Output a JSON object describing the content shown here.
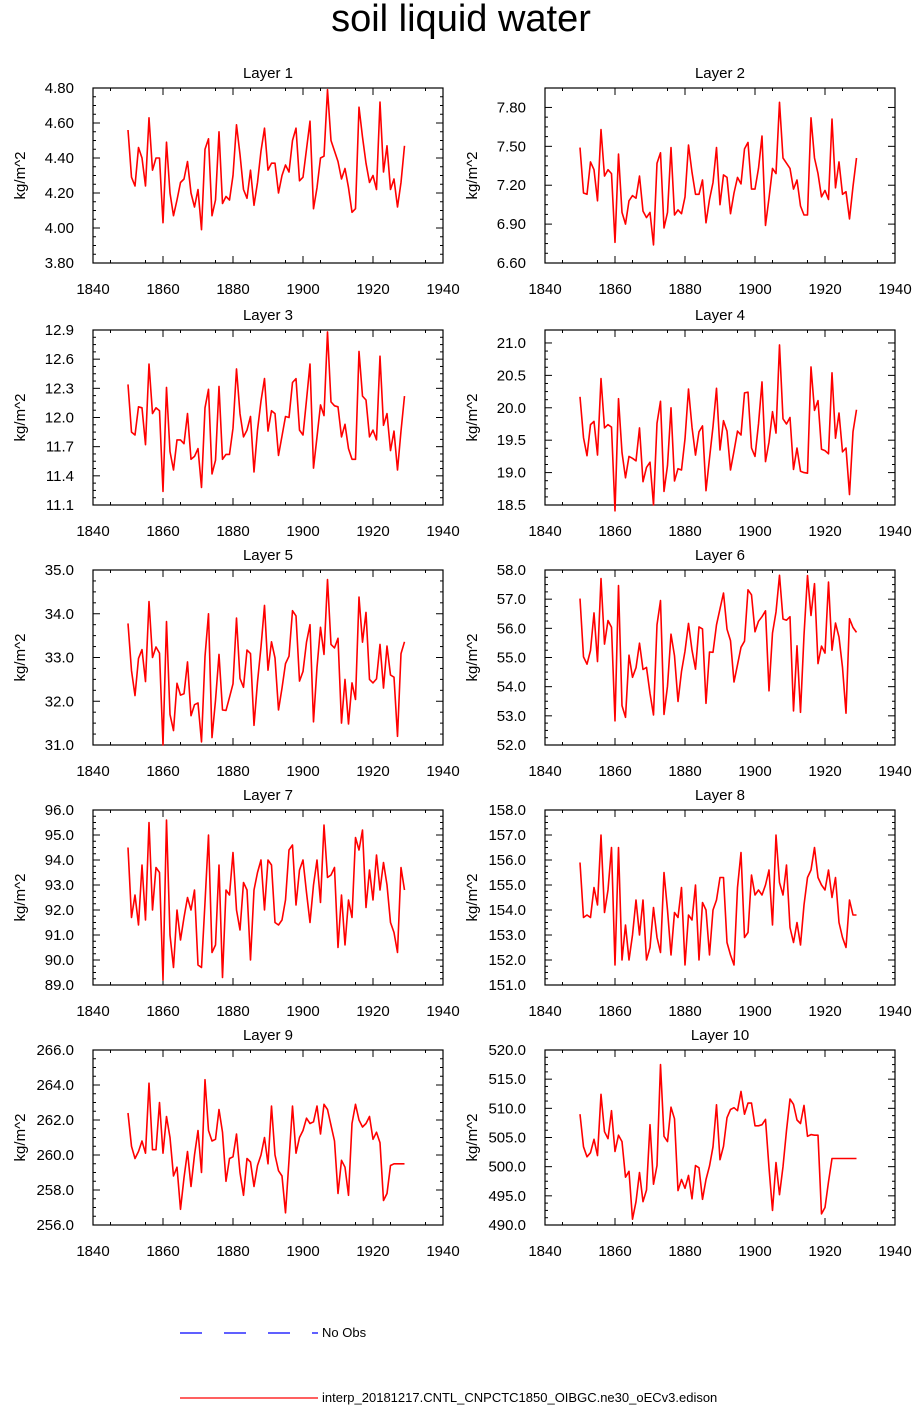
{
  "title": "soil liquid water",
  "colors": {
    "series": "#ff0000",
    "noobs": "#0000ff",
    "axis": "#000000"
  },
  "legend": {
    "noobs_label": "No Obs",
    "series_label": "interp_20181217.CNTL_CNPCTC1850_OIBGC.ne30_oECv3.edison"
  },
  "chart_data": [
    {
      "type": "line",
      "title": "Layer 1",
      "ylabel": "kg/m^2",
      "xlim": [
        1840,
        1940
      ],
      "xticks": [
        1840,
        1860,
        1880,
        1900,
        1920,
        1940
      ],
      "ylim": [
        3.8,
        4.8
      ],
      "yticks": [
        "3.80",
        "4.00",
        "4.20",
        "4.40",
        "4.60",
        "4.80"
      ],
      "x0": 1850,
      "values": [
        4.56,
        4.29,
        4.24,
        4.46,
        4.4,
        4.24,
        4.63,
        4.33,
        4.4,
        4.4,
        4.03,
        4.49,
        4.2,
        4.07,
        4.16,
        4.26,
        4.28,
        4.38,
        4.2,
        4.12,
        4.22,
        3.99,
        4.45,
        4.51,
        4.07,
        4.16,
        4.55,
        4.14,
        4.18,
        4.16,
        4.3,
        4.59,
        4.42,
        4.22,
        4.17,
        4.33,
        4.13,
        4.26,
        4.44,
        4.57,
        4.33,
        4.37,
        4.37,
        4.2,
        4.3,
        4.36,
        4.32,
        4.5,
        4.57,
        4.27,
        4.29,
        4.45,
        4.61,
        4.11,
        4.23,
        4.4,
        4.41,
        4.79,
        4.5,
        4.44,
        4.38,
        4.28,
        4.34,
        4.23,
        4.09,
        4.11,
        4.69,
        4.52,
        4.37,
        4.26,
        4.3,
        4.22,
        4.72,
        4.32,
        4.47,
        4.22,
        4.28,
        4.12,
        4.26,
        4.47
      ]
    },
    {
      "type": "line",
      "title": "Layer 2",
      "ylabel": "kg/m^2",
      "xlim": [
        1840,
        1940
      ],
      "xticks": [
        1840,
        1860,
        1880,
        1900,
        1920,
        1940
      ],
      "ylim": [
        6.6,
        7.95
      ],
      "yticks": [
        "6.60",
        "6.90",
        "7.20",
        "7.50",
        "7.80"
      ],
      "x0": 1850,
      "values": [
        7.49,
        7.14,
        7.13,
        7.38,
        7.32,
        7.08,
        7.63,
        7.27,
        7.32,
        7.29,
        6.76,
        7.44,
        6.99,
        6.9,
        7.08,
        7.12,
        7.1,
        7.27,
        7.0,
        6.95,
        6.99,
        6.74,
        7.37,
        7.45,
        6.87,
        6.99,
        7.49,
        6.97,
        7.01,
        6.98,
        7.11,
        7.51,
        7.3,
        7.13,
        7.13,
        7.24,
        6.91,
        7.09,
        7.22,
        7.49,
        7.05,
        7.28,
        7.26,
        6.98,
        7.14,
        7.26,
        7.21,
        7.48,
        7.53,
        7.17,
        7.17,
        7.33,
        7.58,
        6.89,
        7.1,
        7.33,
        7.29,
        7.84,
        7.41,
        7.37,
        7.33,
        7.17,
        7.24,
        7.04,
        6.97,
        6.97,
        7.72,
        7.41,
        7.29,
        7.11,
        7.16,
        7.09,
        7.71,
        7.18,
        7.38,
        7.13,
        7.15,
        6.94,
        7.19,
        7.41
      ]
    },
    {
      "type": "line",
      "title": "Layer 3",
      "ylabel": "kg/m^2",
      "xlim": [
        1840,
        1940
      ],
      "xticks": [
        1840,
        1860,
        1880,
        1900,
        1920,
        1940
      ],
      "ylim": [
        11.1,
        12.9
      ],
      "yticks": [
        "11.1",
        "11.4",
        "11.7",
        "12.0",
        "12.3",
        "12.6",
        "12.9"
      ],
      "x0": 1850,
      "values": [
        12.34,
        11.85,
        11.82,
        12.11,
        12.1,
        11.72,
        12.55,
        12.04,
        12.1,
        12.07,
        11.24,
        12.31,
        11.65,
        11.46,
        11.77,
        11.77,
        11.73,
        12.04,
        11.57,
        11.6,
        11.68,
        11.28,
        12.1,
        12.29,
        11.42,
        11.56,
        12.32,
        11.57,
        11.62,
        11.62,
        11.89,
        12.5,
        12.04,
        11.8,
        11.87,
        12.01,
        11.44,
        11.87,
        12.17,
        12.4,
        11.86,
        12.07,
        12.04,
        11.61,
        11.81,
        12.01,
        12.0,
        12.36,
        12.4,
        11.87,
        11.82,
        12.18,
        12.55,
        11.48,
        11.8,
        12.13,
        12.02,
        12.88,
        12.16,
        12.12,
        12.11,
        11.8,
        11.93,
        11.68,
        11.57,
        11.57,
        12.68,
        12.22,
        12.18,
        11.8,
        11.87,
        11.77,
        12.63,
        11.92,
        12.04,
        11.66,
        11.86,
        11.46,
        11.86,
        12.22
      ]
    },
    {
      "type": "line",
      "title": "Layer 4",
      "ylabel": "kg/m^2",
      "xlim": [
        1840,
        1940
      ],
      "xticks": [
        1840,
        1860,
        1880,
        1900,
        1920,
        1940
      ],
      "ylim": [
        18.5,
        21.2
      ],
      "yticks": [
        "18.5",
        "19.0",
        "19.5",
        "20.0",
        "20.5",
        "21.0"
      ],
      "x0": 1850,
      "values": [
        20.17,
        19.54,
        19.26,
        19.74,
        19.79,
        19.27,
        20.45,
        19.69,
        19.74,
        19.7,
        18.41,
        20.14,
        19.31,
        18.92,
        19.25,
        19.22,
        19.18,
        19.69,
        18.86,
        19.08,
        19.16,
        18.5,
        19.76,
        20.1,
        18.71,
        19.11,
        20.0,
        18.87,
        19.06,
        19.04,
        19.52,
        20.29,
        19.7,
        19.27,
        19.63,
        19.72,
        18.72,
        19.22,
        19.71,
        20.3,
        19.35,
        19.8,
        19.64,
        19.04,
        19.33,
        19.64,
        19.58,
        20.23,
        20.24,
        19.38,
        19.25,
        19.75,
        20.4,
        19.17,
        19.47,
        19.94,
        19.61,
        20.97,
        19.83,
        19.75,
        19.85,
        19.05,
        19.38,
        19.02,
        19.0,
        18.99,
        20.63,
        19.96,
        20.11,
        19.36,
        19.34,
        19.29,
        20.54,
        19.53,
        19.92,
        19.32,
        19.38,
        18.66,
        19.63,
        19.97
      ]
    },
    {
      "type": "line",
      "title": "Layer 5",
      "ylabel": "kg/m^2",
      "xlim": [
        1840,
        1940
      ],
      "xticks": [
        1840,
        1860,
        1880,
        1900,
        1920,
        1940
      ],
      "ylim": [
        31.0,
        35.0
      ],
      "yticks": [
        "31.0",
        "32.0",
        "33.0",
        "34.0",
        "35.0"
      ],
      "x0": 1850,
      "values": [
        33.78,
        32.7,
        32.13,
        32.98,
        33.18,
        32.45,
        34.28,
        33.0,
        33.24,
        33.1,
        31.0,
        33.82,
        31.7,
        31.33,
        32.41,
        32.14,
        32.17,
        32.9,
        31.67,
        31.92,
        31.96,
        31.07,
        33.02,
        34.0,
        31.17,
        32.02,
        33.07,
        31.8,
        31.79,
        32.09,
        32.4,
        33.9,
        32.52,
        32.32,
        33.17,
        33.09,
        31.45,
        32.44,
        33.24,
        34.19,
        32.71,
        33.36,
        32.99,
        31.8,
        32.3,
        32.86,
        33.03,
        34.07,
        33.95,
        32.46,
        32.68,
        33.35,
        33.75,
        31.53,
        32.77,
        33.69,
        33.07,
        34.78,
        33.3,
        33.22,
        33.44,
        31.5,
        32.5,
        31.48,
        32.42,
        32.04,
        34.38,
        33.35,
        34.03,
        32.5,
        32.42,
        32.51,
        33.3,
        32.3,
        33.26,
        32.6,
        32.55,
        31.2,
        33.09,
        33.36
      ]
    },
    {
      "type": "line",
      "title": "Layer 6",
      "ylabel": "kg/m^2",
      "xlim": [
        1840,
        1940
      ],
      "xticks": [
        1840,
        1860,
        1880,
        1900,
        1920,
        1940
      ],
      "ylim": [
        52.0,
        58.0
      ],
      "yticks": [
        "52.0",
        "53.0",
        "54.0",
        "55.0",
        "56.0",
        "57.0",
        "58.0"
      ],
      "x0": 1850,
      "values": [
        57.02,
        55.02,
        54.77,
        55.24,
        56.53,
        54.86,
        57.71,
        55.46,
        56.27,
        56.04,
        52.83,
        57.47,
        53.35,
        52.95,
        55.08,
        54.32,
        54.65,
        55.49,
        54.59,
        54.66,
        53.77,
        53.03,
        56.12,
        56.95,
        53.05,
        54.02,
        55.8,
        55.06,
        53.49,
        54.52,
        55.22,
        56.17,
        55.25,
        54.6,
        56.05,
        55.98,
        53.43,
        55.19,
        55.18,
        56.12,
        56.67,
        57.21,
        55.97,
        55.58,
        54.16,
        54.75,
        55.35,
        55.56,
        57.32,
        57.15,
        55.88,
        56.24,
        56.4,
        56.6,
        53.86,
        55.84,
        56.56,
        57.82,
        56.32,
        56.28,
        56.4,
        53.17,
        55.4,
        53.12,
        55.76,
        57.81,
        56.44,
        57.53,
        54.79,
        55.39,
        55.15,
        57.59,
        55.25,
        56.18,
        55.7,
        54.66,
        53.09,
        56.33,
        56.03,
        55.86
      ]
    },
    {
      "type": "line",
      "title": "Layer 7",
      "ylabel": "kg/m^2",
      "xlim": [
        1840,
        1940
      ],
      "xticks": [
        1840,
        1860,
        1880,
        1900,
        1920,
        1940
      ],
      "ylim": [
        89.0,
        96.0
      ],
      "yticks": [
        "89.0",
        "90.0",
        "91.0",
        "92.0",
        "93.0",
        "94.0",
        "95.0",
        "96.0"
      ],
      "x0": 1850,
      "values": [
        94.5,
        91.7,
        92.6,
        91.4,
        93.8,
        91.6,
        95.5,
        92.0,
        93.7,
        93.5,
        89.2,
        95.6,
        91.0,
        89.7,
        92.0,
        90.8,
        91.7,
        92.5,
        92.0,
        92.8,
        89.8,
        89.7,
        92.3,
        95.0,
        90.3,
        90.6,
        93.8,
        89.3,
        92.8,
        92.6,
        94.3,
        92.0,
        91.2,
        93.1,
        92.8,
        90.0,
        92.8,
        93.5,
        94.0,
        92.0,
        94.0,
        93.8,
        91.5,
        91.4,
        91.6,
        92.4,
        94.4,
        94.6,
        92.2,
        93.6,
        94.0,
        92.7,
        91.5,
        93.0,
        94.0,
        92.3,
        95.4,
        93.3,
        93.4,
        93.7,
        90.5,
        92.6,
        90.6,
        92.4,
        91.7,
        94.9,
        94.4,
        95.2,
        92.1,
        93.6,
        92.4,
        94.2,
        92.8,
        93.9,
        93.0,
        91.5,
        91.1,
        90.3,
        93.7,
        92.8
      ]
    },
    {
      "type": "line",
      "title": "Layer 8",
      "ylabel": "kg/m^2",
      "xlim": [
        1840,
        1940
      ],
      "xticks": [
        1840,
        1860,
        1880,
        1900,
        1920,
        1940
      ],
      "ylim": [
        151.0,
        158.0
      ],
      "yticks": [
        "151.0",
        "152.0",
        "153.0",
        "154.0",
        "155.0",
        "156.0",
        "157.0",
        "158.0"
      ],
      "x0": 1850,
      "values": [
        155.9,
        153.7,
        153.8,
        153.7,
        154.9,
        154.2,
        157.0,
        153.9,
        154.8,
        156.5,
        151.8,
        156.5,
        152.0,
        153.4,
        152.0,
        153.0,
        154.4,
        153.0,
        154.4,
        152.0,
        152.5,
        154.1,
        152.9,
        152.3,
        155.5,
        154.0,
        152.2,
        153.9,
        153.7,
        154.9,
        151.8,
        153.8,
        153.6,
        155.0,
        152.0,
        154.3,
        154.0,
        152.2,
        154.0,
        154.4,
        155.3,
        155.3,
        152.7,
        152.2,
        151.8,
        154.9,
        156.3,
        152.9,
        153.1,
        155.4,
        154.6,
        154.8,
        154.6,
        155.0,
        155.6,
        153.4,
        157.0,
        155.1,
        154.6,
        155.8,
        153.3,
        152.7,
        153.5,
        152.6,
        154.2,
        155.3,
        155.6,
        156.5,
        155.3,
        155.0,
        154.8,
        155.6,
        154.5,
        155.3,
        153.5,
        152.9,
        152.5,
        154.4,
        153.8,
        153.8
      ]
    },
    {
      "type": "line",
      "title": "Layer 9",
      "ylabel": "kg/m^2",
      "xlim": [
        1840,
        1940
      ],
      "xticks": [
        1840,
        1860,
        1880,
        1900,
        1920,
        1940
      ],
      "ylim": [
        256.0,
        266.0
      ],
      "yticks": [
        "256.0",
        "258.0",
        "260.0",
        "262.0",
        "264.0",
        "266.0"
      ],
      "x0": 1850,
      "values": [
        262.4,
        260.5,
        259.8,
        260.2,
        260.8,
        260.1,
        264.1,
        260.3,
        260.3,
        263.0,
        260.1,
        262.2,
        261.0,
        258.8,
        259.3,
        256.9,
        258.7,
        260.2,
        258.2,
        260.0,
        261.4,
        259.0,
        264.3,
        261.4,
        260.8,
        260.9,
        262.6,
        261.3,
        258.5,
        259.8,
        259.9,
        261.2,
        259.0,
        257.7,
        259.8,
        259.6,
        258.2,
        259.4,
        260.0,
        261.0,
        259.5,
        262.8,
        260.0,
        259.1,
        258.8,
        256.7,
        259.7,
        262.8,
        260.1,
        261.0,
        261.4,
        262.1,
        261.8,
        261.9,
        262.8,
        261.2,
        262.9,
        262.6,
        261.7,
        260.8,
        257.8,
        259.7,
        259.3,
        257.7,
        261.8,
        262.9,
        262.0,
        261.6,
        261.8,
        262.2,
        260.9,
        261.3,
        260.7,
        257.4,
        257.8,
        259.4,
        259.5,
        259.5,
        259.5,
        259.5
      ]
    },
    {
      "type": "line",
      "title": "Layer 10",
      "ylabel": "kg/m^2",
      "xlim": [
        1840,
        1940
      ],
      "xticks": [
        1840,
        1860,
        1880,
        1900,
        1920,
        1940
      ],
      "ylim": [
        490.0,
        520.0
      ],
      "yticks": [
        "490.0",
        "495.0",
        "500.0",
        "505.0",
        "510.0",
        "515.0",
        "520.0"
      ],
      "x0": 1850,
      "values": [
        509.0,
        503.4,
        501.7,
        502.4,
        504.7,
        501.9,
        512.4,
        506.0,
        504.8,
        509.6,
        502.6,
        505.4,
        504.3,
        498.2,
        499.2,
        491.0,
        494.0,
        499.0,
        494.0,
        496.0,
        507.2,
        497.0,
        500.2,
        517.5,
        505.2,
        504.3,
        510.2,
        508.2,
        495.9,
        497.8,
        496.3,
        498.5,
        494.5,
        500.2,
        499.8,
        494.4,
        497.8,
        500.1,
        503.4,
        510.6,
        501.2,
        503.5,
        508.4,
        509.8,
        510.1,
        509.6,
        512.9,
        509.0,
        510.9,
        510.9,
        507.0,
        507.0,
        507.2,
        508.1,
        499.8,
        492.5,
        500.7,
        495.2,
        500.0,
        506.2,
        511.6,
        510.7,
        508.0,
        507.4,
        510.5,
        505.2,
        505.5,
        505.4,
        505.4,
        491.9,
        493.0,
        497.4,
        501.4,
        501.4,
        501.4,
        501.4,
        501.4,
        501.4,
        501.4,
        501.4
      ]
    }
  ]
}
